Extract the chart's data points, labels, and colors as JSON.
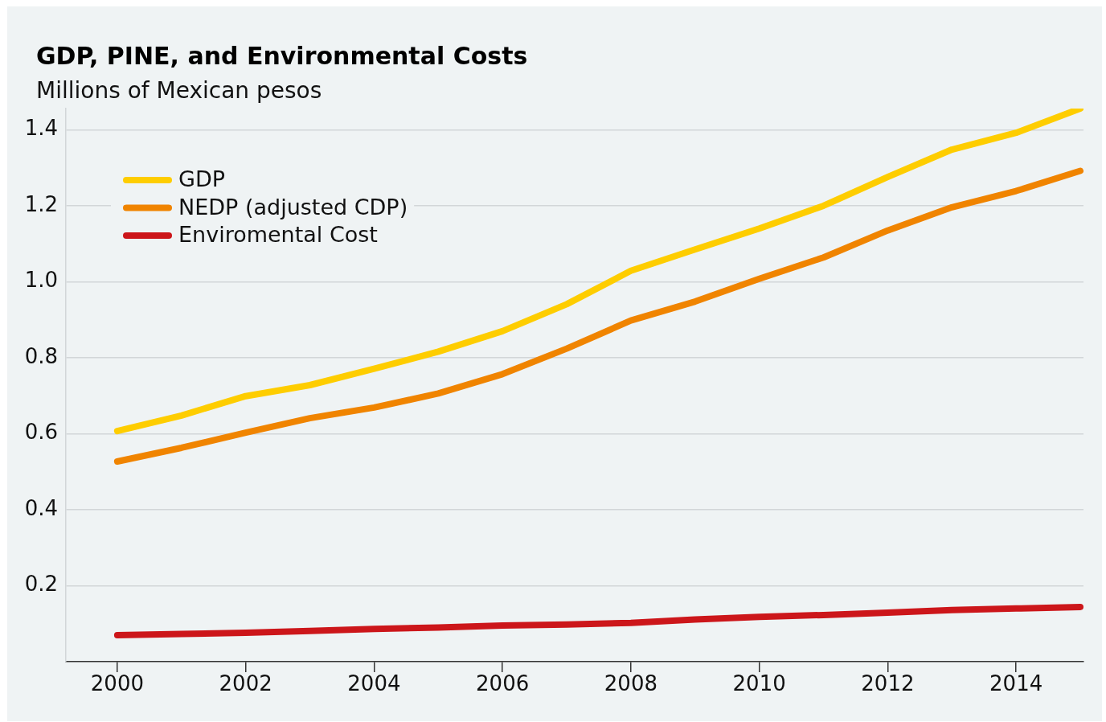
{
  "chart_data": {
    "type": "line",
    "title": "GDP, PINE, and Environmental Costs",
    "subtitle": "Millions of Mexican pesos",
    "x": [
      2000,
      2001,
      2002,
      2003,
      2004,
      2005,
      2006,
      2007,
      2008,
      2009,
      2010,
      2011,
      2012,
      2013,
      2014,
      2015
    ],
    "series": [
      {
        "name": "GDP",
        "color": "#fecd00",
        "values": [
          0.607,
          0.648,
          0.699,
          0.728,
          0.771,
          0.816,
          0.87,
          0.941,
          1.029,
          1.085,
          1.14,
          1.2,
          1.276,
          1.348,
          1.392,
          1.456
        ]
      },
      {
        "name": "NEDP (adjusted CDP)",
        "color": "#f08400",
        "values": [
          0.527,
          0.563,
          0.603,
          0.641,
          0.669,
          0.706,
          0.757,
          0.824,
          0.898,
          0.948,
          1.008,
          1.064,
          1.135,
          1.196,
          1.239,
          1.292
        ]
      },
      {
        "name": "Enviromental Cost",
        "color": "#cc161a",
        "values": [
          0.07,
          0.073,
          0.076,
          0.081,
          0.086,
          0.09,
          0.095,
          0.098,
          0.102,
          0.111,
          0.118,
          0.123,
          0.129,
          0.136,
          0.14,
          0.144
        ]
      }
    ],
    "xlim": [
      1999.2,
      2015.05
    ],
    "xticks": [
      2000,
      2002,
      2004,
      2006,
      2008,
      2010,
      2012,
      2014
    ],
    "ylim": [
      0,
      1.456
    ],
    "yticks": [
      0.2,
      0.4,
      0.6,
      0.8,
      {
        "value": 1,
        "label": "1.0"
      },
      1.2,
      1.4
    ],
    "grid": "y",
    "legend": "top left",
    "marker": "none",
    "line_style": "solid"
  }
}
